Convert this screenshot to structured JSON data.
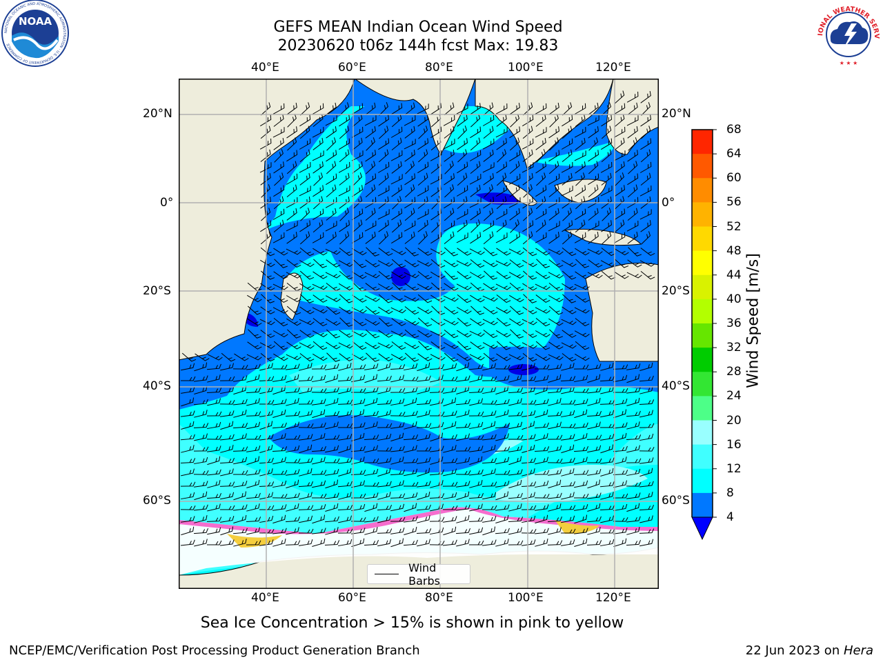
{
  "title": {
    "line1": "GEFS MEAN Indian Ocean Wind Speed",
    "line2": "20230620 t06z 144h fcst   Max: 19.83"
  },
  "map": {
    "lon_ticks": [
      "40°E",
      "60°E",
      "80°E",
      "100°E",
      "120°E"
    ],
    "lat_ticks": [
      "20°N",
      "0°",
      "20°S",
      "40°S",
      "60°S"
    ],
    "extent": {
      "lon": [
        20,
        129
      ],
      "lat": [
        -74,
        27
      ]
    },
    "colors": {
      "land": "#eeeddc",
      "ice_free_ocean_low": "#0078ff",
      "band_4_8": "#0078ff",
      "band_8_12": "#00ffff",
      "band_12_16": "#40ffff",
      "band_16_20": "#99ffff",
      "deep_calm": "#0000e6",
      "sea_ice_pink": "#ff66cc",
      "sea_ice_yellow": "#ffcc33"
    }
  },
  "legend": {
    "label": "Wind Barbs"
  },
  "colorbar": {
    "label": "Wind Speed [m/s]",
    "ticks": [
      "68",
      "64",
      "60",
      "56",
      "52",
      "48",
      "44",
      "40",
      "36",
      "32",
      "28",
      "24",
      "20",
      "16",
      "12",
      "8",
      "4"
    ],
    "levels": [
      4,
      8,
      12,
      16,
      20,
      24,
      28,
      32,
      36,
      40,
      44,
      48,
      52,
      56,
      60,
      64,
      68
    ],
    "colors": [
      "#0078ff",
      "#00ffff",
      "#40ffff",
      "#99ffff",
      "#4dff88",
      "#33e633",
      "#00cc00",
      "#66e600",
      "#b3ff00",
      "#d9f200",
      "#ffff00",
      "#ffd900",
      "#ffb300",
      "#ff8c00",
      "#ff5900",
      "#ff2600"
    ],
    "under_color": "#0000ff"
  },
  "note": "Sea Ice Concentration > 15% is shown in pink to yellow",
  "footer": {
    "left": "NCEP/EMC/Verification Post Processing Product Generation Branch",
    "date": "22 Jun 2023 on ",
    "host": "Hera"
  },
  "logos": {
    "noaa": "NOAA",
    "noaa_ring": "NATIONAL OCEANIC AND ATMOSPHERIC ADMINISTRATION · U.S. DEPARTMENT OF COMMERCE",
    "nws_ring": "NATIONAL WEATHER SERVICE"
  }
}
